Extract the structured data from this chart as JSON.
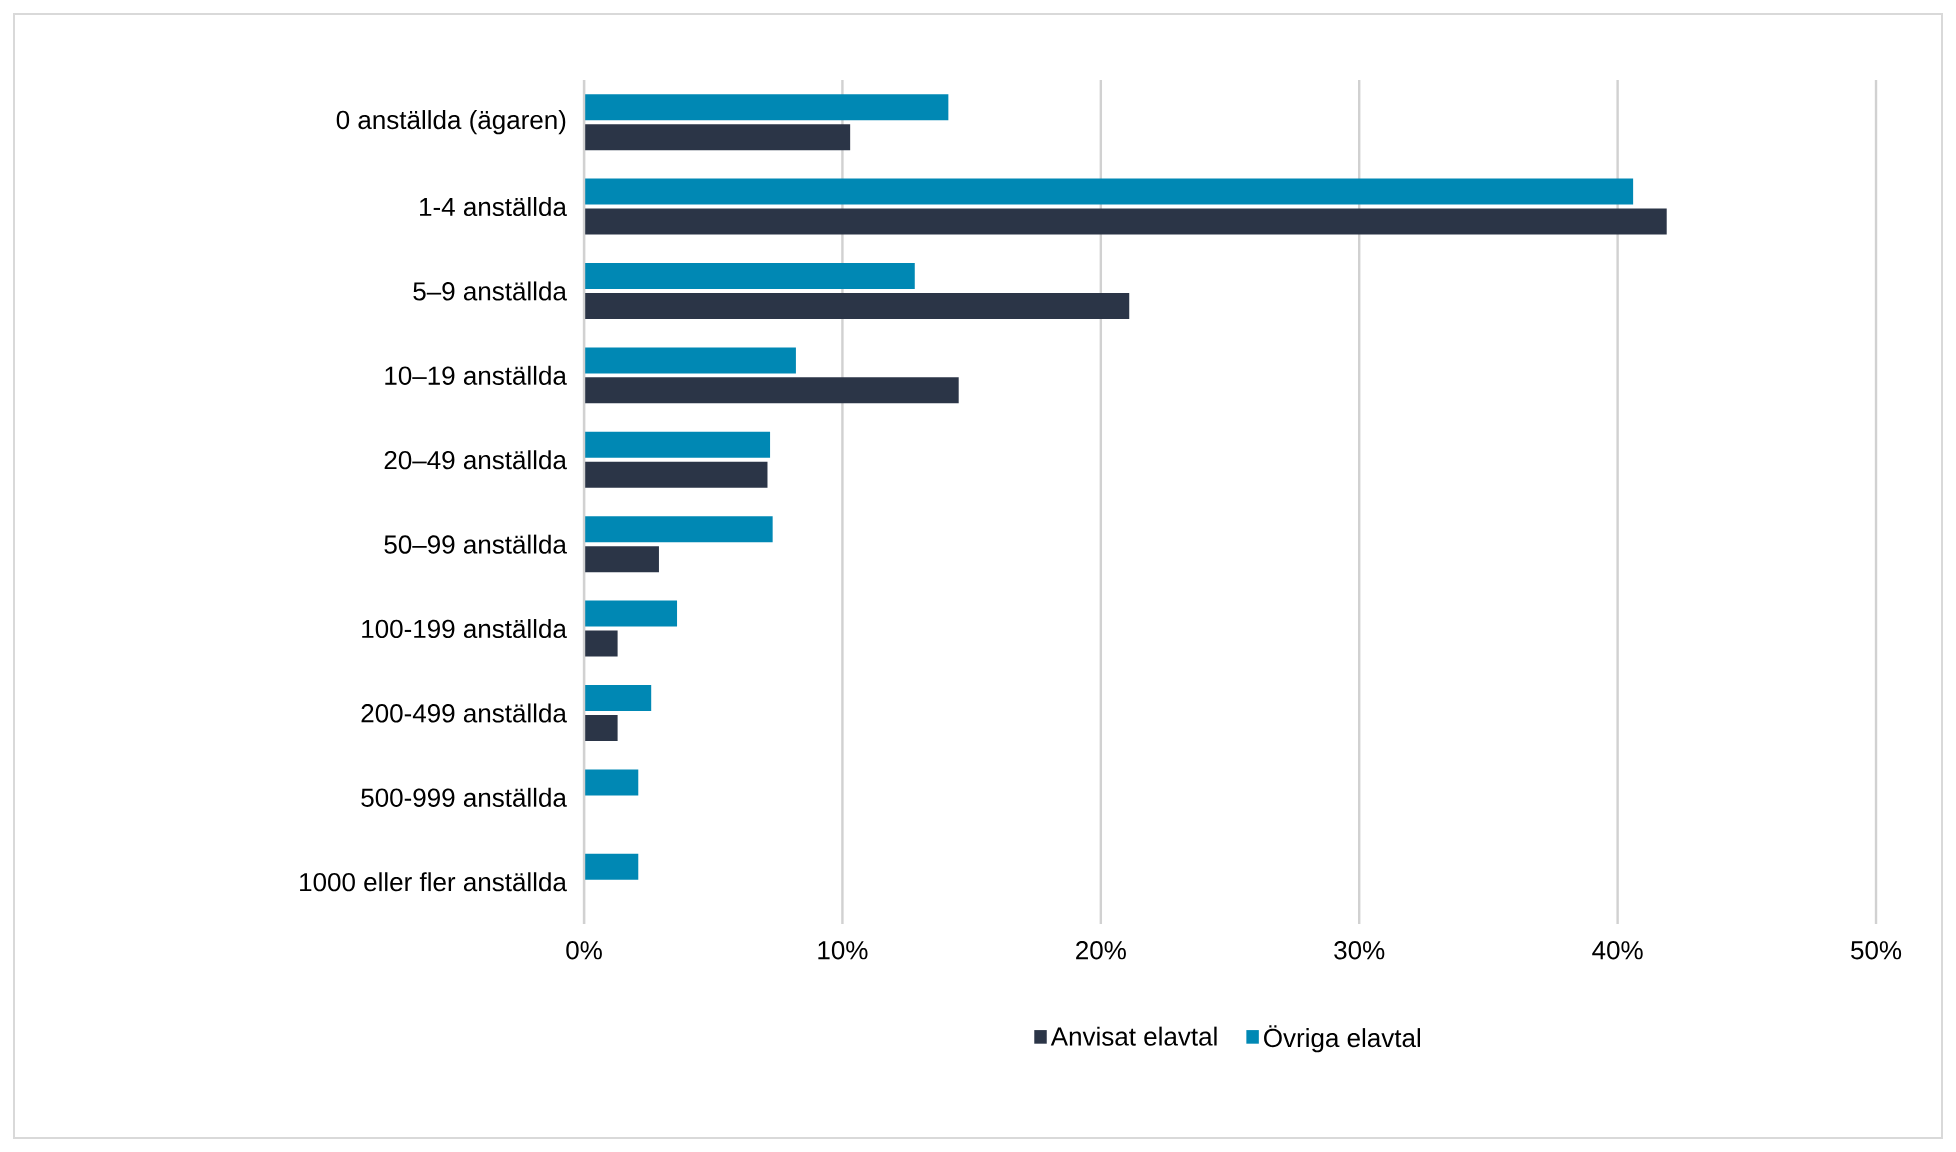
{
  "chart_data": {
    "type": "bar",
    "orientation": "horizontal",
    "categories": [
      "0 anställda (ägaren)",
      "1-4 anställda",
      "5–9 anställda",
      "10–19 anställda",
      "20–49 anställda",
      "50–99 anställda",
      "100-199 anställda",
      "200-499 anställda",
      "500-999 anställda",
      "1000 eller fler anställda"
    ],
    "series": [
      {
        "name": "Anvisat elavtal",
        "color": "#2b3547",
        "values": [
          10.3,
          41.9,
          21.1,
          14.5,
          7.1,
          2.9,
          1.3,
          1.3,
          0,
          0
        ]
      },
      {
        "name": "Övriga elavtal",
        "color": "#0088b4",
        "values": [
          14.1,
          40.6,
          12.8,
          8.2,
          7.2,
          7.3,
          3.6,
          2.6,
          2.1,
          2.1
        ]
      }
    ],
    "xlim": [
      0,
      50
    ],
    "xticks": [
      {
        "value": 0,
        "label": "0%"
      },
      {
        "value": 10,
        "label": "10%"
      },
      {
        "value": 20,
        "label": "20%"
      },
      {
        "value": 30,
        "label": "30%"
      },
      {
        "value": 40,
        "label": "40%"
      },
      {
        "value": 50,
        "label": "50%"
      }
    ],
    "grid": "x",
    "legend": "bottom"
  }
}
